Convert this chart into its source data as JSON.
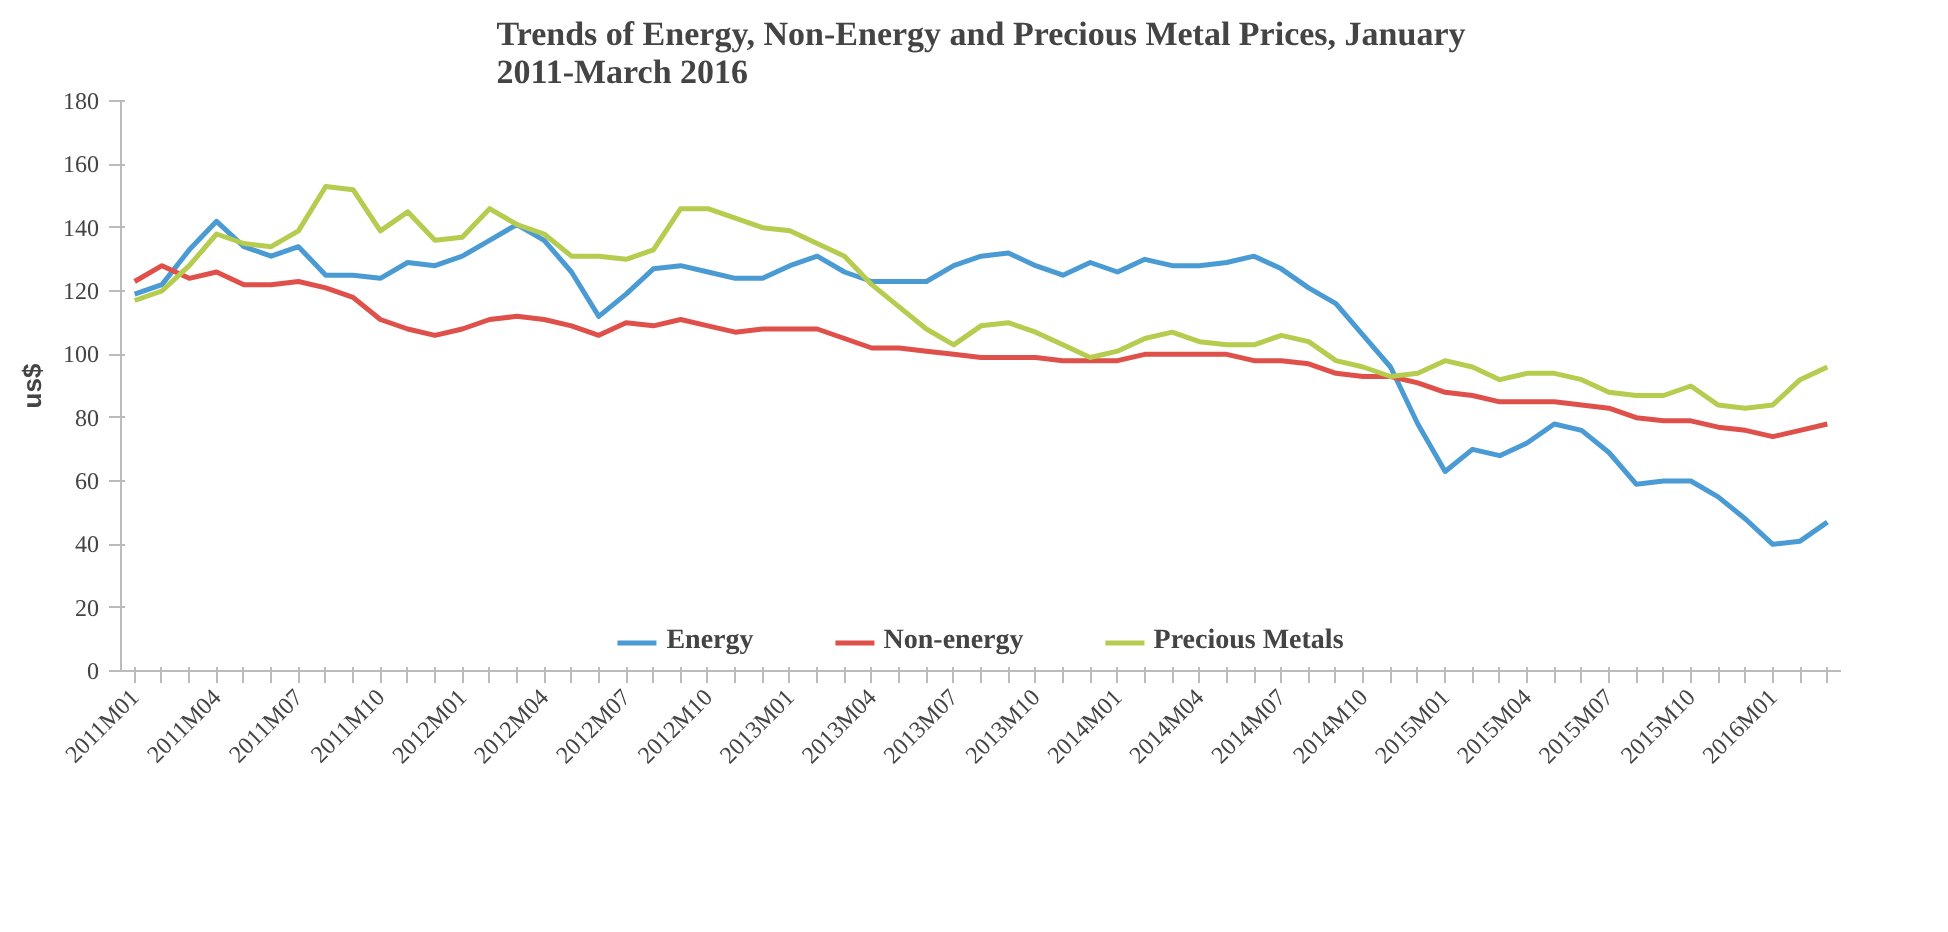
{
  "chart_data": {
    "type": "line",
    "title": "Trends of Energy, Non-Energy and Precious Metal Prices, January 2011-March 2016",
    "ylabel": "us$",
    "categories": [
      "2011M01",
      null,
      null,
      "2011M04",
      null,
      null,
      "2011M07",
      null,
      null,
      "2011M10",
      null,
      null,
      "2012M01",
      null,
      null,
      "2012M04",
      null,
      null,
      "2012M07",
      null,
      null,
      "2012M10",
      null,
      null,
      "2013M01",
      null,
      null,
      "2013M04",
      null,
      null,
      "2013M07",
      null,
      null,
      "2013M10",
      null,
      null,
      "2014M01",
      null,
      null,
      "2014M04",
      null,
      null,
      "2014M07",
      null,
      null,
      "2014M10",
      null,
      null,
      "2015M01",
      null,
      null,
      "2015M04",
      null,
      null,
      "2015M07",
      null,
      null,
      "2015M10",
      null,
      null,
      "2016M01",
      null,
      null
    ],
    "series": [
      {
        "name": "Energy",
        "color": "#4a9bd4",
        "values": [
          119,
          122,
          133,
          142,
          134,
          131,
          134,
          125,
          125,
          124,
          129,
          128,
          131,
          136,
          141,
          136,
          126,
          112,
          119,
          127,
          128,
          126,
          124,
          124,
          128,
          131,
          126,
          123,
          123,
          123,
          128,
          131,
          132,
          128,
          125,
          129,
          126,
          130,
          128,
          128,
          129,
          131,
          127,
          121,
          116,
          106,
          96,
          78,
          63,
          70,
          68,
          72,
          78,
          76,
          69,
          59,
          60,
          60,
          55,
          48,
          40,
          41,
          47
        ]
      },
      {
        "name": "Non-energy",
        "color": "#e0504a",
        "values": [
          123,
          128,
          124,
          126,
          122,
          122,
          123,
          121,
          118,
          111,
          108,
          106,
          108,
          111,
          112,
          111,
          109,
          106,
          110,
          109,
          111,
          109,
          107,
          108,
          108,
          108,
          105,
          102,
          102,
          101,
          100,
          99,
          99,
          99,
          98,
          98,
          98,
          100,
          100,
          100,
          100,
          98,
          98,
          97,
          94,
          93,
          93,
          91,
          88,
          87,
          85,
          85,
          85,
          84,
          83,
          80,
          79,
          79,
          77,
          76,
          74,
          76,
          78
        ]
      },
      {
        "name": "Precious Metals",
        "color": "#b5cc4e",
        "values": [
          117,
          120,
          128,
          138,
          135,
          134,
          139,
          153,
          152,
          139,
          145,
          136,
          137,
          146,
          141,
          138,
          131,
          131,
          130,
          133,
          146,
          146,
          143,
          140,
          139,
          135,
          131,
          122,
          115,
          108,
          103,
          109,
          110,
          107,
          103,
          99,
          101,
          105,
          107,
          104,
          103,
          103,
          106,
          104,
          98,
          96,
          93,
          94,
          98,
          96,
          92,
          94,
          94,
          92,
          88,
          87,
          87,
          90,
          84,
          83,
          84,
          92,
          96
        ]
      }
    ],
    "ylim": [
      0,
      180
    ],
    "yticks": [
      0,
      20,
      40,
      60,
      80,
      100,
      120,
      140,
      160,
      180
    ],
    "grid": false,
    "legend": "bottom",
    "marker": "none",
    "line_style": "solid"
  }
}
